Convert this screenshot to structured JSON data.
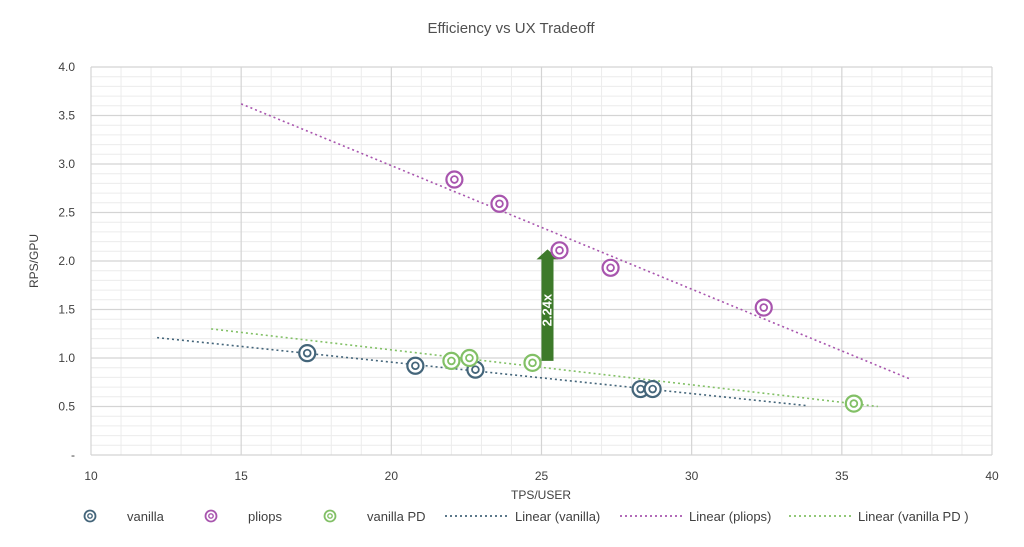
{
  "chart_data": {
    "type": "scatter",
    "title": "Efficiency vs UX Tradeoff",
    "xlabel": "TPS/USER",
    "ylabel": "RPS/GPU",
    "xlim": [
      10,
      40
    ],
    "ylim": [
      0,
      4
    ],
    "x_ticks": [
      "10",
      "15",
      "20",
      "25",
      "30",
      "35",
      "40"
    ],
    "y_ticks": [
      "-",
      "0.5",
      "1.0",
      "1.5",
      "2.0",
      "2.5",
      "3.0",
      "3.5",
      "4.0"
    ],
    "grid": true,
    "legend_position": "bottom",
    "series": [
      {
        "name": "vanilla",
        "color": "#44657a",
        "x": [
          17.2,
          20.8,
          22.8,
          28.3,
          28.7
        ],
        "y": [
          1.05,
          0.92,
          0.88,
          0.68,
          0.68
        ],
        "trend": {
          "name": "Linear (vanilla)",
          "x": [
            12.2,
            33.8
          ],
          "y": [
            1.21,
            0.51
          ]
        }
      },
      {
        "name": "pliops",
        "color": "#a855ae",
        "x": [
          22.1,
          23.6,
          25.6,
          27.3,
          32.4
        ],
        "y": [
          2.84,
          2.59,
          2.11,
          1.93,
          1.52
        ],
        "trend": {
          "name": "Linear (pliops)",
          "x": [
            15.0,
            37.3
          ],
          "y": [
            3.62,
            0.78
          ]
        }
      },
      {
        "name": "vanilla PD",
        "color": "#82c066",
        "x": [
          22.0,
          22.6,
          24.7,
          35.4
        ],
        "y": [
          0.97,
          1.0,
          0.95,
          0.53
        ],
        "trend": {
          "name": "Linear (vanilla PD )",
          "x": [
            14.0,
            36.2
          ],
          "y": [
            1.3,
            0.5
          ]
        }
      }
    ],
    "annotation": {
      "text": "2.24x",
      "x": 25.2,
      "y_from": 0.97,
      "y_to": 2.12,
      "color": "#3d7a2a"
    }
  }
}
